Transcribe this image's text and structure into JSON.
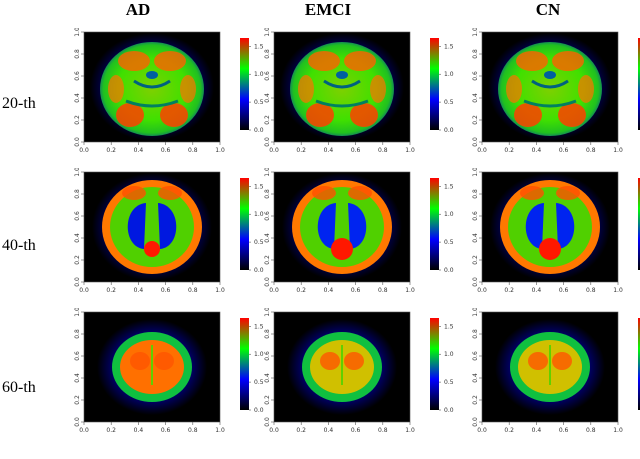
{
  "columns": [
    {
      "title": "AD"
    },
    {
      "title": "EMCI"
    },
    {
      "title": "CN"
    }
  ],
  "rows": [
    {
      "label": "20-th",
      "slice": "axial-low"
    },
    {
      "label": "40-th",
      "slice": "axial-mid"
    },
    {
      "label": "60-th",
      "slice": "axial-high"
    }
  ],
  "axis": {
    "x_ticks": [
      "0.0",
      "0.2",
      "0.4",
      "0.6",
      "0.8",
      "1.0"
    ],
    "y_ticks": [
      "0.0",
      "0.2",
      "0.4",
      "0.6",
      "0.8",
      "1.0"
    ]
  },
  "colorbar": {
    "ticks": [
      "0.0",
      "0.5",
      "1.0",
      "1.5"
    ],
    "max": 1.65,
    "colors": [
      "#000000",
      "#0000ff",
      "#00ff00",
      "#ff0000"
    ]
  }
}
